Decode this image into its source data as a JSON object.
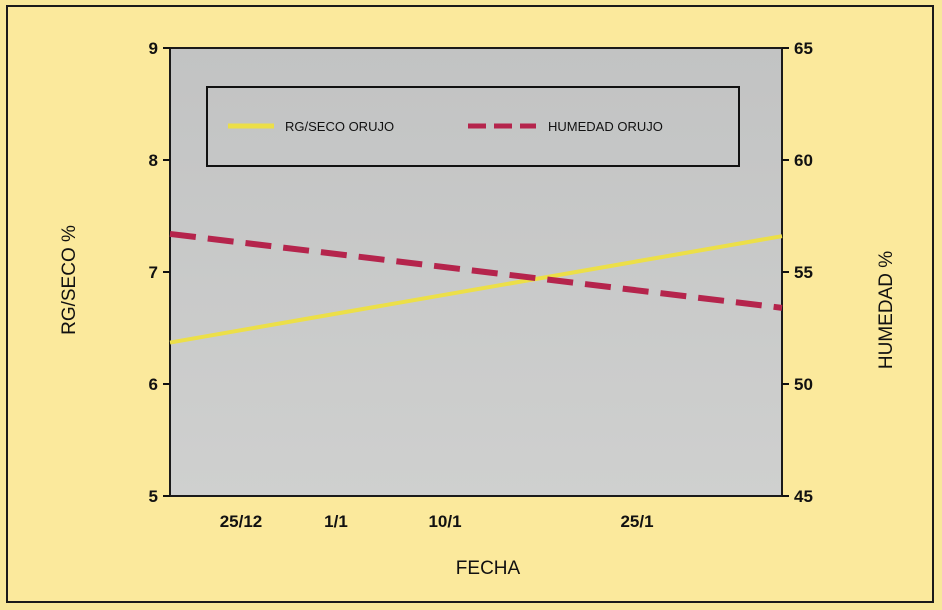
{
  "chart_data": {
    "type": "line",
    "title": "",
    "xlabel": "FECHA",
    "ylabel_left": "RG/SECO %",
    "ylabel_right": "HUMEDAD %",
    "x_ticks": [
      "25/12",
      "1/1",
      "10/1",
      "25/1"
    ],
    "ylim_left": [
      5,
      9
    ],
    "yticks_left": [
      5,
      6,
      7,
      8,
      9
    ],
    "ylim_right": [
      45,
      65
    ],
    "yticks_right": [
      45,
      50,
      55,
      60,
      65
    ],
    "grid": false,
    "legend_placement": "top",
    "series": [
      {
        "name": "RG/SECO ORUJO",
        "axis": "left",
        "color": "#ecdf48",
        "style": "solid",
        "points": [
          {
            "x": "start",
            "y": 6.37
          },
          {
            "x": "end",
            "y": 7.32
          }
        ]
      },
      {
        "name": "HUMEDAD ORUJO",
        "axis": "right",
        "color": "#b5244c",
        "style": "dashed",
        "points": [
          {
            "x": "start",
            "y": 56.7
          },
          {
            "x": "end",
            "y": 53.4
          }
        ]
      }
    ]
  }
}
